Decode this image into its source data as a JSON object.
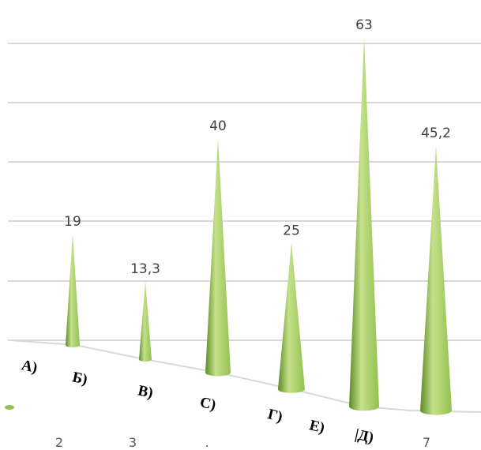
{
  "chart_data": {
    "type": "bar",
    "shape": "cone",
    "categories": [
      "А)",
      "Б)",
      "В)",
      "С)",
      "Г)",
      "Е)",
      "|Д)"
    ],
    "values": [
      null,
      19,
      13.3,
      40,
      25,
      63,
      45.2
    ],
    "data_labels": [
      "",
      "19",
      "13,3",
      "40",
      "25",
      "63",
      "45,2"
    ],
    "x_tick_labels": [
      "2",
      "3",
      ".",
      "7"
    ],
    "grid": true,
    "colors": {
      "bar_light": "#c5e08a",
      "bar_mid": "#92c150",
      "bar_dark": "#5c8a26",
      "grid": "#d9d9d9"
    }
  }
}
